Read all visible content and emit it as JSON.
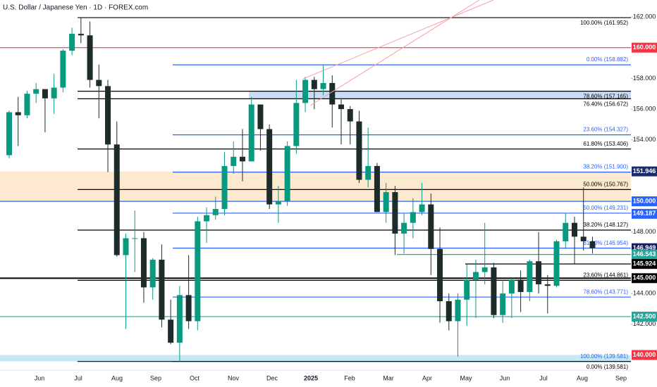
{
  "chart_data": {
    "type": "candlestick",
    "title": "U.S. Dollar / Japanese Yen · 1D · FOREX.com",
    "up_color": "#089981",
    "down_color": "#1e2b2b",
    "ylim": [
      139.2,
      163.1
    ],
    "yticks": [
      {
        "value": 162,
        "label": "162.000"
      },
      {
        "value": 158,
        "label": "158.000"
      },
      {
        "value": 156,
        "label": "156.000"
      },
      {
        "value": 154,
        "label": "154.000"
      },
      {
        "value": 148,
        "label": "148.000"
      },
      {
        "value": 144,
        "label": "144.000"
      },
      {
        "value": 142,
        "label": "142.000"
      }
    ],
    "xticks": [
      "Jun",
      "Jul",
      "Aug",
      "Sep",
      "Oct",
      "Nov",
      "Dec",
      "2025",
      "Feb",
      "Mar",
      "Apr",
      "May",
      "Jun",
      "Jul",
      "Aug",
      "Sep"
    ],
    "open": [
      153.0,
      155.8,
      155.6,
      157.0,
      157.3,
      156.7,
      157.4,
      159.8,
      160.9,
      160.8,
      157.9,
      157.5,
      153.7,
      146.5,
      147.6,
      147.6,
      144.4,
      146.2,
      142.3,
      140.8,
      143.9,
      142.2,
      148.7,
      149.1,
      149.5,
      152.3,
      152.9,
      152.6,
      156.3,
      154.7,
      149.8,
      150.0,
      153.6,
      156.4,
      157.9,
      157.3,
      157.7,
      156.3,
      156.0,
      155.2,
      151.4,
      152.3,
      149.3,
      150.6,
      147.9,
      148.6,
      149.3,
      149.8,
      146.9,
      143.5,
      142.2,
      143.6,
      144.9,
      145.4,
      145.7,
      142.6,
      144.0,
      144.9,
      144.1,
      146.1,
      144.6,
      144.5,
      147.4,
      148.6,
      147.7,
      147.4
    ],
    "high": [
      155.9,
      156.8,
      157.2,
      157.7,
      157.3,
      158.3,
      159.9,
      161.3,
      161.95,
      161.7,
      158.9,
      157.9,
      155.2,
      147.9,
      149.4,
      148.0,
      146.3,
      147.2,
      143.6,
      144.5,
      146.5,
      149.0,
      149.6,
      150.3,
      153.2,
      153.9,
      154.7,
      156.8,
      156.3,
      155.0,
      151.0,
      153.9,
      157.9,
      158.1,
      158.1,
      158.9,
      158.2,
      156.7,
      156.2,
      155.9,
      154.8,
      152.5,
      151.2,
      151.0,
      149.2,
      150.2,
      151.2,
      150.5,
      148.3,
      144.0,
      144.0,
      145.9,
      146.2,
      148.6,
      146.0,
      144.9,
      145.0,
      145.5,
      146.2,
      148.0,
      145.2,
      147.5,
      149.2,
      149.0,
      150.9,
      147.7
    ],
    "low": [
      152.8,
      153.6,
      155.4,
      156.4,
      154.5,
      155.7,
      157.1,
      159.5,
      160.3,
      157.4,
      155.4,
      151.9,
      146.4,
      141.7,
      145.4,
      143.4,
      143.6,
      141.8,
      140.7,
      139.58,
      141.7,
      141.6,
      147.3,
      148.8,
      149.1,
      151.8,
      151.3,
      152.6,
      153.3,
      149.5,
      148.6,
      149.7,
      153.1,
      155.8,
      156.0,
      156.9,
      154.8,
      153.7,
      153.7,
      151.2,
      150.9,
      149.3,
      148.6,
      146.5,
      146.6,
      147.6,
      149.1,
      145.2,
      142.1,
      141.6,
      139.9,
      141.9,
      142.4,
      144.6,
      142.4,
      142.1,
      142.4,
      142.8,
      143.5,
      144.0,
      142.7,
      144.4,
      146.9,
      145.9,
      146.8,
      146.6
    ],
    "close": [
      155.8,
      155.6,
      157.0,
      157.3,
      156.7,
      157.4,
      159.8,
      160.9,
      160.8,
      157.9,
      157.5,
      153.7,
      146.5,
      147.6,
      147.6,
      144.4,
      146.2,
      142.3,
      140.8,
      143.9,
      142.2,
      148.7,
      149.1,
      149.5,
      152.3,
      152.9,
      152.6,
      156.3,
      154.7,
      149.8,
      150.0,
      153.6,
      156.4,
      157.9,
      157.3,
      157.7,
      156.3,
      156.0,
      155.2,
      151.4,
      152.3,
      149.3,
      150.6,
      147.9,
      148.6,
      149.3,
      149.8,
      146.9,
      143.5,
      142.2,
      143.6,
      144.9,
      145.4,
      145.7,
      142.6,
      144.0,
      144.9,
      144.1,
      146.1,
      144.6,
      144.5,
      147.4,
      148.6,
      147.7,
      147.4,
      146.95
    ],
    "zones": [
      {
        "from": 150.0,
        "to": 151.946,
        "color": "#fbe3c4"
      },
      {
        "from": 156.672,
        "to": 157.165,
        "color": "#bcd3f2"
      },
      {
        "from": 139.581,
        "to": 140.0,
        "color": "#b7e3ee"
      }
    ],
    "levels": [
      {
        "value": 161.952,
        "label": "100.00% (161.952)",
        "color": "#000000"
      },
      {
        "value": 158.882,
        "label": "0.00% (158.882)",
        "color": "#2962ff"
      },
      {
        "value": 157.165,
        "label": "78.60% (157.165)",
        "color": "#000000"
      },
      {
        "value": 156.672,
        "label": "76.40% (156.672)",
        "color": "#000000"
      },
      {
        "value": 154.327,
        "label": "23.60% (154.327)",
        "color": "#2962ff"
      },
      {
        "value": 153.406,
        "label": "61.80% (153.406)",
        "color": "#000000"
      },
      {
        "value": 151.9,
        "label": "38.20% (151.900)",
        "color": "#2962ff"
      },
      {
        "value": 150.767,
        "label": "50.00% (150.767)",
        "color": "#000000"
      },
      {
        "value": 149.231,
        "label": "50.00% (149.231)",
        "color": "#2962ff"
      },
      {
        "value": 148.127,
        "label": "38.20% (148.127)",
        "color": "#000000"
      },
      {
        "value": 146.954,
        "label": "61.80% (146.954)",
        "color": "#2962ff"
      },
      {
        "value": 144.861,
        "label": "23.60% (144.861)",
        "color": "#000000"
      },
      {
        "value": 143.771,
        "label": "78.60% (143.771)",
        "color": "#2962ff"
      },
      {
        "value": 139.581,
        "label": "100.00% (139.581)",
        "color": "#2962ff"
      },
      {
        "value": 139.581,
        "label": "0.00% (139.581)",
        "color": "#000000"
      }
    ],
    "price_badges": [
      {
        "value": 160.0,
        "label": "160.000",
        "color": "#f23645",
        "line": true
      },
      {
        "value": 151.946,
        "label": "151.946",
        "color": "#1a2a6c",
        "line": false
      },
      {
        "value": 150.0,
        "label": "150.000",
        "color": "#2962ff",
        "line": true
      },
      {
        "value": 149.187,
        "label": "149.187",
        "color": "#2962ff",
        "line": false
      },
      {
        "value": 146.949,
        "label": "146.949",
        "color": "#131f5c",
        "line": false
      },
      {
        "value": 146.543,
        "label": "146.543",
        "color": "#26a69a",
        "line": true
      },
      {
        "value": 145.924,
        "label": "145.924",
        "color": "#000000",
        "line": true
      },
      {
        "value": 145.0,
        "label": "145.000",
        "color": "#000000",
        "line": true
      },
      {
        "value": 142.5,
        "label": "142.500",
        "color": "#26a69a",
        "line": true
      },
      {
        "value": 140.0,
        "label": "140.000",
        "color": "#f23645",
        "line": false
      }
    ]
  }
}
